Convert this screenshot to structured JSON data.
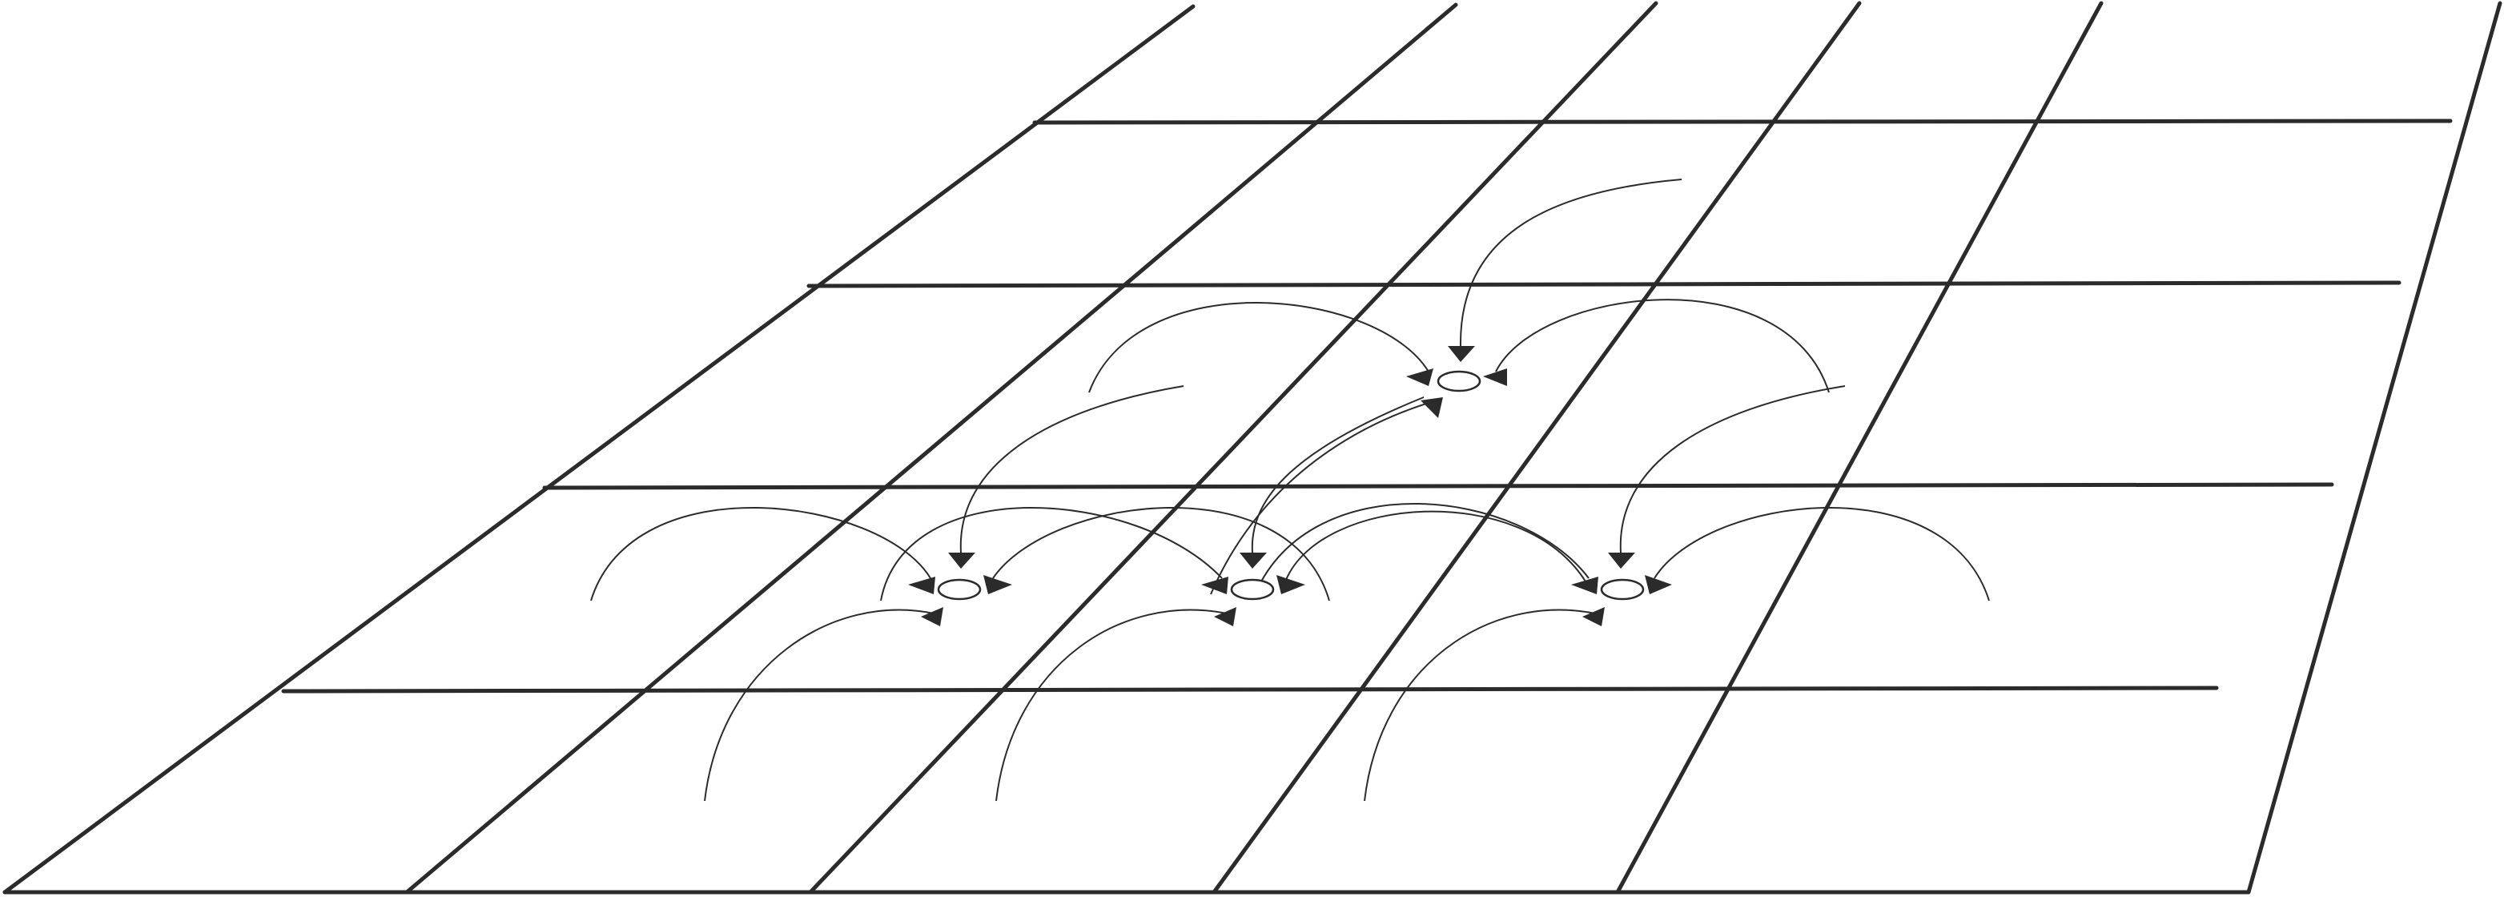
{
  "colors": {
    "grid": "#2b2b2b",
    "arrows": "#2b2b2b",
    "node_fill": "#ffffff",
    "background": "#ffffff"
  },
  "diagram": {
    "kind": "perspective grid with node targets and incoming curved arrows",
    "grid_rows": 4,
    "grid_columns": 6,
    "node_count": 4,
    "arrow_count": 15
  }
}
